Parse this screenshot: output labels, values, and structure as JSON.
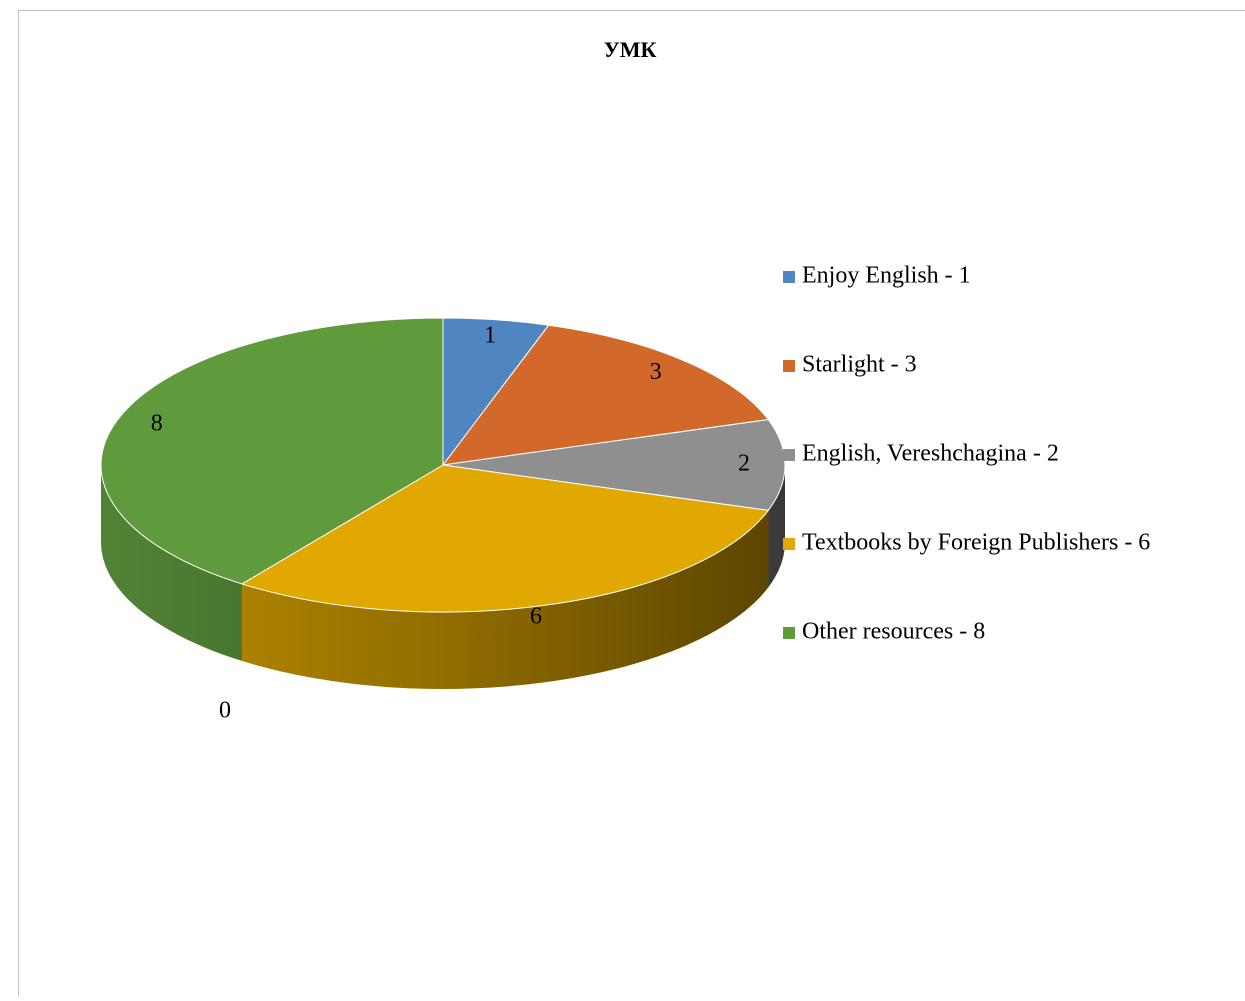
{
  "chart_data": {
    "type": "pie",
    "title": "УМК",
    "categories": [
      "Enjoy English - 1",
      "Starlight - 3",
      "English, Vereshchagina - 2",
      "Textbooks by Foreign Publishers - 6",
      "Other resources - 8",
      null
    ],
    "values": [
      1,
      3,
      2,
      6,
      8,
      0
    ],
    "colors": [
      "#4f86c1",
      "#d2692a",
      "#8f8f8f",
      "#e0a800",
      "#5f9a3d",
      "#2e75b6"
    ],
    "legend": "right"
  }
}
